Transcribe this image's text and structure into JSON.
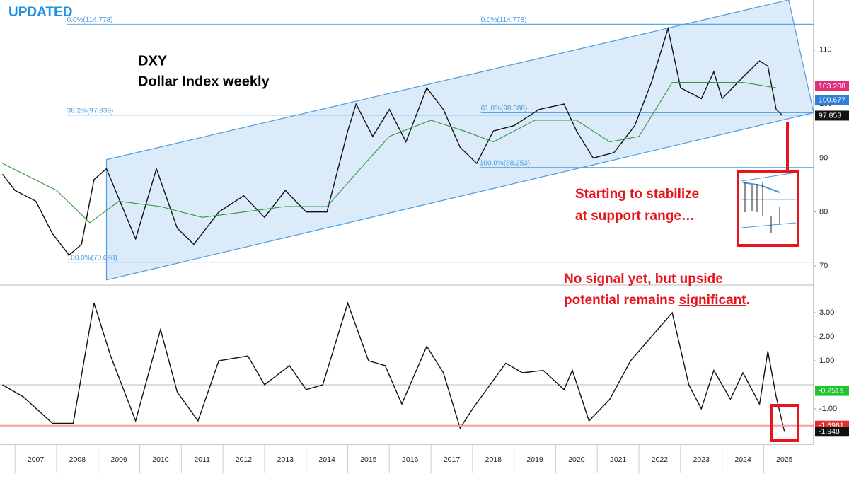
{
  "banner": "UPDATED",
  "chart_data": [
    {
      "type": "line",
      "title": "DXY",
      "subtitle": "Dollar Index weekly",
      "xlim": [
        2006.64,
        2026.2
      ],
      "ylim": [
        66.85,
        119.28
      ],
      "yticks": [
        70,
        80,
        90,
        100,
        110
      ],
      "xticks": [
        2007,
        2008,
        2009,
        2010,
        2011,
        2012,
        2013,
        2014,
        2015,
        2016,
        2017,
        2018,
        2019,
        2020,
        2021,
        2022,
        2023,
        2024,
        2025
      ],
      "series": [
        {
          "color": "#111111",
          "x": [
            2006.7,
            2007.0,
            2007.5,
            2007.9,
            2008.3,
            2008.6,
            2008.9,
            2009.2,
            2009.9,
            2010.4,
            2010.9,
            2011.3,
            2011.9,
            2012.5,
            2013.0,
            2013.5,
            2014.0,
            2014.5,
            2015.0,
            2015.2,
            2015.6,
            2016.0,
            2016.4,
            2016.9,
            2017.3,
            2017.7,
            2018.1,
            2018.5,
            2019.0,
            2019.6,
            2020.2,
            2020.5,
            2020.9,
            2021.4,
            2021.9,
            2022.3,
            2022.7,
            2023.0,
            2023.5,
            2023.8,
            2024.0,
            2024.5,
            2024.9,
            2025.1,
            2025.3,
            2025.45
          ],
          "values": [
            87,
            84,
            82,
            76,
            72,
            74,
            86,
            88,
            75,
            88,
            77,
            74,
            80,
            83,
            79,
            84,
            80,
            80,
            95,
            100,
            94,
            99,
            93,
            103,
            99,
            92,
            89,
            95,
            96,
            99,
            100,
            95,
            90,
            91,
            96,
            104,
            114,
            103,
            101,
            106,
            101,
            105,
            108,
            107,
            99,
            97.9
          ]
        },
        {
          "color": "#2e9a3a",
          "x": [
            2006.7,
            2008.0,
            2008.8,
            2009.5,
            2010.5,
            2011.5,
            2012.5,
            2013.5,
            2014.5,
            2015.3,
            2016.0,
            2017.0,
            2017.8,
            2018.5,
            2019.5,
            2020.5,
            2021.3,
            2022.0,
            2022.8,
            2023.5,
            2024.5,
            2025.3
          ],
          "values": [
            89,
            84,
            78,
            82,
            81,
            79,
            80,
            81,
            81,
            88,
            94,
            97,
            95,
            93,
            97,
            97,
            93,
            94,
            104,
            104,
            104,
            103
          ]
        }
      ],
      "channel": {
        "upper": [
          [
            2009.2,
            89.7
          ],
          [
            2025.6,
            119.3
          ]
        ],
        "lower": [
          [
            2009.2,
            67.4
          ],
          [
            2026.2,
            98.4
          ]
        ]
      },
      "fib_labels": [
        {
          "label": "0.0%(114.778)",
          "value": 114.778,
          "x": 2008.25
        },
        {
          "label": "0.0%(114.778)",
          "value": 114.778,
          "x": 2018.2
        },
        {
          "label": "38.2%(97.939)",
          "value": 97.939,
          "x": 2008.25
        },
        {
          "label": "61.8%(98.386)",
          "value": 98.386,
          "x": 2018.2
        },
        {
          "label": "100.0%(88.253)",
          "value": 88.253,
          "x": 2018.17
        },
        {
          "label": "100.0%(70.698)",
          "value": 70.698,
          "x": 2008.25
        }
      ],
      "price_tags": [
        {
          "value": 103.288,
          "color": "#e0307a"
        },
        {
          "value": 100.677,
          "color": "#2f7fd6"
        },
        {
          "value": 97.853,
          "color": "#111111"
        }
      ],
      "annotations": [
        "Starting to stabilize",
        "at support range…",
        "No signal yet, but upside",
        "potential remains ",
        "significant",
        "."
      ]
    },
    {
      "type": "line",
      "xlim": [
        2006.64,
        2026.2
      ],
      "ylim": [
        -2.47,
        4.09
      ],
      "yticks": [
        {
          "value": 3,
          "label": "3.00"
        },
        {
          "value": 2,
          "label": "2.00"
        },
        {
          "value": 1,
          "label": "1.00"
        },
        {
          "value": -1,
          "label": "-1.00"
        }
      ],
      "series": [
        {
          "color": "#111111",
          "x": [
            2006.7,
            2007.2,
            2007.9,
            2008.4,
            2008.9,
            2009.3,
            2009.9,
            2010.5,
            2010.9,
            2011.4,
            2011.9,
            2012.6,
            2013.0,
            2013.6,
            2014.0,
            2014.4,
            2015.0,
            2015.5,
            2015.9,
            2016.3,
            2016.9,
            2017.3,
            2017.7,
            2018.0,
            2018.8,
            2019.2,
            2019.7,
            2020.2,
            2020.4,
            2020.8,
            2021.3,
            2021.8,
            2022.8,
            2023.2,
            2023.5,
            2023.8,
            2024.2,
            2024.5,
            2024.9,
            2025.1,
            2025.3,
            2025.5
          ],
          "values": [
            0,
            -0.5,
            -1.6,
            -1.6,
            3.4,
            1.2,
            -1.5,
            2.3,
            -0.3,
            -1.5,
            1.0,
            1.2,
            0,
            0.8,
            -0.2,
            0,
            3.4,
            1.0,
            0.8,
            -0.8,
            1.6,
            0.5,
            -1.8,
            -1.0,
            0.9,
            0.5,
            0.6,
            -0.2,
            0.6,
            -1.5,
            -0.6,
            1.0,
            3.0,
            0,
            -1.0,
            0.6,
            -0.6,
            0.5,
            -0.8,
            1.4,
            -0.5,
            -1.948
          ]
        }
      ],
      "price_tags": [
        {
          "value": -0.2519,
          "color": "#22c32e"
        },
        {
          "value": -1.6961,
          "color": "#e03030",
          "line": true
        },
        {
          "value": -1.948,
          "color": "#111111"
        }
      ]
    }
  ]
}
